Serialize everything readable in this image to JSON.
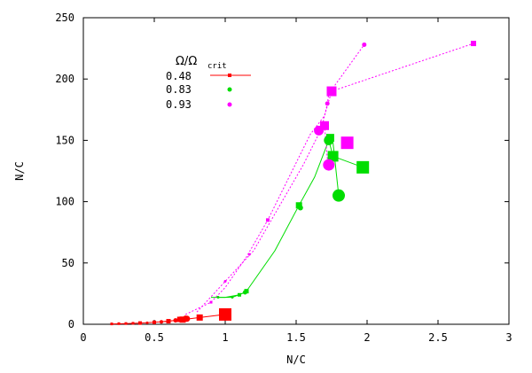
{
  "chart_data": {
    "type": "scatter",
    "xlabel": "N/C",
    "ylabel": "N/C",
    "xlim": [
      0,
      3
    ],
    "ylim": [
      0,
      250
    ],
    "x_ticks": [
      0,
      0.5,
      1,
      1.5,
      2,
      2.5,
      3
    ],
    "x_tick_labels": [
      "0",
      "0.5",
      "1",
      "1.5",
      "2",
      "2.5",
      "3"
    ],
    "y_ticks": [
      0,
      50,
      100,
      150,
      200,
      250
    ],
    "y_tick_labels": [
      "0",
      "50",
      "100",
      "150",
      "200",
      "250"
    ],
    "grid": false,
    "legend": {
      "title_main": "Ω/Ω",
      "title_sub": "crit",
      "placement": "top-left",
      "entries": [
        "0.48",
        "0.83",
        "0.93"
      ]
    },
    "series": [
      {
        "name": "0.48",
        "color": "#ff0000",
        "lines": [
          [
            [
              0.2,
              0.3
            ],
            [
              0.3,
              0.6
            ],
            [
              0.4,
              1.0
            ],
            [
              0.5,
              1.6
            ],
            [
              0.6,
              2.5
            ],
            [
              0.7,
              3.8
            ],
            [
              0.82,
              5.5
            ],
            [
              1.0,
              8.0
            ]
          ],
          [
            [
              0.55,
              2.0
            ],
            [
              0.65,
              3.2
            ],
            [
              0.73,
              4.5
            ]
          ]
        ],
        "points": [
          {
            "x": 0.2,
            "y": 0.3,
            "shape": "square",
            "size": 3
          },
          {
            "x": 0.25,
            "y": 0.5,
            "shape": "square",
            "size": 3
          },
          {
            "x": 0.3,
            "y": 0.6,
            "shape": "square",
            "size": 3
          },
          {
            "x": 0.35,
            "y": 0.8,
            "shape": "square",
            "size": 3
          },
          {
            "x": 0.4,
            "y": 1.0,
            "shape": "square",
            "size": 4
          },
          {
            "x": 0.45,
            "y": 1.2,
            "shape": "circle",
            "size": 3
          },
          {
            "x": 0.5,
            "y": 1.6,
            "shape": "square",
            "size": 4
          },
          {
            "x": 0.55,
            "y": 2.0,
            "shape": "circle",
            "size": 4
          },
          {
            "x": 0.6,
            "y": 2.5,
            "shape": "square",
            "size": 5
          },
          {
            "x": 0.65,
            "y": 3.2,
            "shape": "circle",
            "size": 5
          },
          {
            "x": 0.68,
            "y": 4.0,
            "shape": "square",
            "size": 6
          },
          {
            "x": 0.7,
            "y": 3.8,
            "shape": "square",
            "size": 7
          },
          {
            "x": 0.72,
            "y": 5.0,
            "shape": "circle",
            "size": 6
          },
          {
            "x": 0.73,
            "y": 4.5,
            "shape": "circle",
            "size": 7
          },
          {
            "x": 0.82,
            "y": 5.5,
            "shape": "square",
            "size": 7
          },
          {
            "x": 1.0,
            "y": 8.0,
            "shape": "square",
            "size": 14
          }
        ]
      },
      {
        "name": "0.83",
        "color": "#00dd00",
        "lines": [
          [
            [
              0.9,
              22
            ],
            [
              1.0,
              22
            ],
            [
              1.1,
              24
            ],
            [
              1.15,
              27
            ],
            [
              1.35,
              60
            ],
            [
              1.52,
              97
            ],
            [
              1.63,
              120
            ],
            [
              1.73,
              150
            ],
            [
              1.76,
              137
            ],
            [
              1.97,
              128
            ]
          ],
          [
            [
              0.95,
              22
            ],
            [
              1.05,
              22
            ],
            [
              1.14,
              26
            ]
          ],
          [
            [
              1.74,
              152
            ],
            [
              1.76,
              148
            ],
            [
              1.8,
              105
            ]
          ]
        ],
        "points": [
          {
            "x": 0.95,
            "y": 22,
            "shape": "circle",
            "size": 3
          },
          {
            "x": 1.05,
            "y": 22,
            "shape": "circle",
            "size": 3
          },
          {
            "x": 1.1,
            "y": 24,
            "shape": "square",
            "size": 4
          },
          {
            "x": 1.14,
            "y": 26,
            "shape": "circle",
            "size": 5
          },
          {
            "x": 1.15,
            "y": 27,
            "shape": "square",
            "size": 5
          },
          {
            "x": 1.52,
            "y": 97,
            "shape": "square",
            "size": 7
          },
          {
            "x": 1.53,
            "y": 95,
            "shape": "circle",
            "size": 6
          },
          {
            "x": 1.73,
            "y": 150,
            "shape": "circle",
            "size": 11
          },
          {
            "x": 1.74,
            "y": 152,
            "shape": "square",
            "size": 9
          },
          {
            "x": 1.76,
            "y": 137,
            "shape": "square",
            "size": 12
          },
          {
            "x": 1.97,
            "y": 128,
            "shape": "square",
            "size": 14
          },
          {
            "x": 1.8,
            "y": 105,
            "shape": "circle",
            "size": 14
          }
        ]
      },
      {
        "name": "0.93",
        "color": "#ff00ff",
        "lines": [
          [
            [
              0.72,
              8
            ],
            [
              0.9,
              18
            ],
            [
              1.0,
              30
            ],
            [
              1.15,
              55
            ],
            [
              1.3,
              85
            ],
            [
              1.45,
              120
            ],
            [
              1.6,
              155
            ],
            [
              1.7,
              170
            ],
            [
              1.75,
              190
            ],
            [
              2.75,
              229
            ]
          ],
          [
            [
              0.8,
              10
            ],
            [
              1.0,
              35
            ],
            [
              1.2,
              60
            ],
            [
              1.4,
              100
            ],
            [
              1.55,
              130
            ],
            [
              1.68,
              160
            ],
            [
              1.72,
              180
            ],
            [
              1.73,
              188
            ],
            [
              1.98,
              228
            ]
          ],
          [
            [
              1.68,
              160
            ],
            [
              1.7,
              162
            ],
            [
              1.72,
              135
            ],
            [
              1.73,
              130
            ]
          ]
        ],
        "points": [
          {
            "x": 0.9,
            "y": 18,
            "shape": "square",
            "size": 3
          },
          {
            "x": 1.0,
            "y": 35,
            "shape": "circle",
            "size": 3
          },
          {
            "x": 1.17,
            "y": 57,
            "shape": "circle",
            "size": 3
          },
          {
            "x": 1.3,
            "y": 85,
            "shape": "square",
            "size": 4
          },
          {
            "x": 1.66,
            "y": 158,
            "shape": "circle",
            "size": 11
          },
          {
            "x": 1.7,
            "y": 162,
            "shape": "square",
            "size": 10
          },
          {
            "x": 1.72,
            "y": 180,
            "shape": "circle",
            "size": 5
          },
          {
            "x": 1.73,
            "y": 130,
            "shape": "circle",
            "size": 13
          },
          {
            "x": 1.75,
            "y": 190,
            "shape": "square",
            "size": 11
          },
          {
            "x": 1.86,
            "y": 148,
            "shape": "square",
            "size": 14
          },
          {
            "x": 1.98,
            "y": 228,
            "shape": "circle",
            "size": 5
          },
          {
            "x": 2.75,
            "y": 229,
            "shape": "square",
            "size": 6
          }
        ]
      }
    ]
  }
}
